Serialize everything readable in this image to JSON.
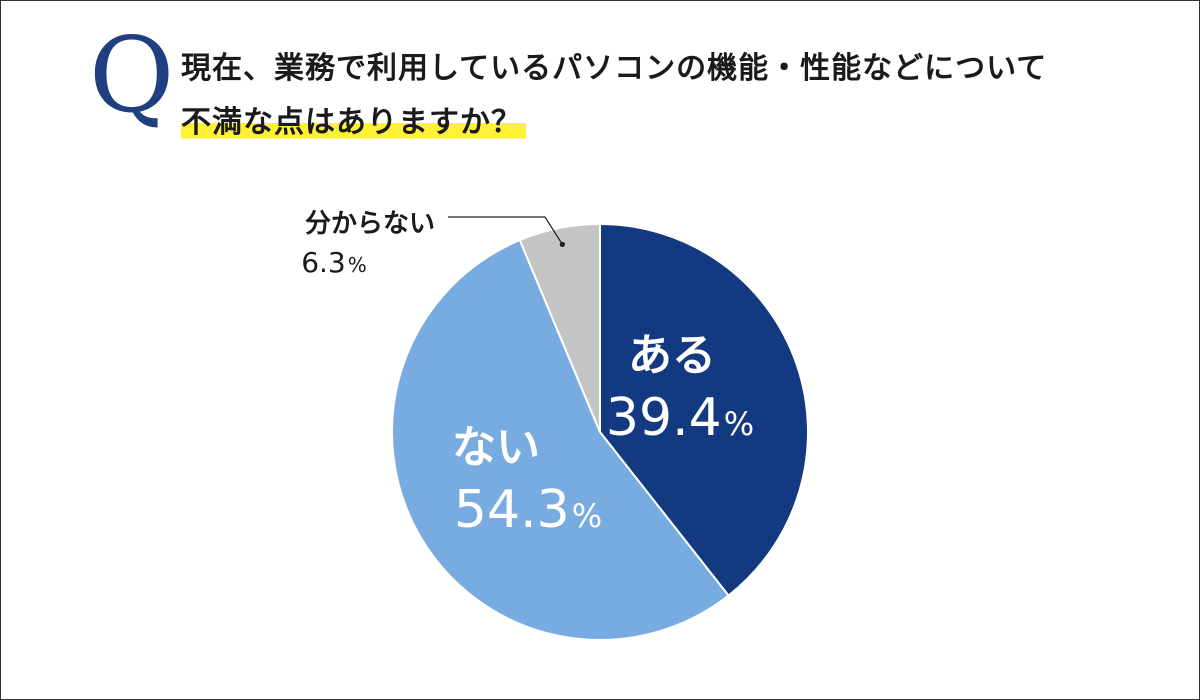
{
  "question": {
    "mark": "Q",
    "line1": "現在、業務で利用しているパソコンの機能・性能などについて",
    "line2": "不満な点はありますか？"
  },
  "chart_data": {
    "type": "pie",
    "start": "top",
    "direction": "clockwise",
    "slices": [
      {
        "label": "ある",
        "value": 39.4,
        "display": "39.4",
        "unit": "%",
        "color": "#133a80",
        "text_color": "#ffffff"
      },
      {
        "label": "ない",
        "value": 54.3,
        "display": "54.3",
        "unit": "%",
        "color": "#78ace0",
        "text_color": "#ffffff"
      },
      {
        "label": "分からない",
        "value": 6.3,
        "display": "6.3",
        "unit": "%",
        "color": "#c4c4c4",
        "text_color": "#1a1a1a",
        "callout": true
      }
    ]
  }
}
